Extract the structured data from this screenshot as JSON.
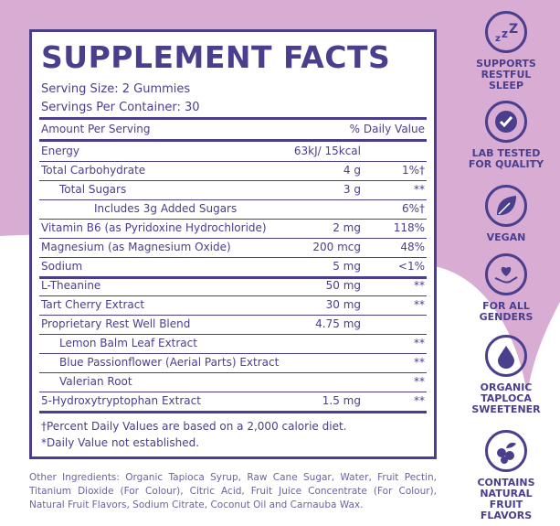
{
  "colors": {
    "brand": "#4a3f8c",
    "background_pink": "#d9acd4",
    "text_muted": "#6a64a0"
  },
  "panel": {
    "title": "SUPPLEMENT FACTS",
    "serving_size": "Serving Size: 2 Gummies",
    "servings_per_container": "Servings Per Container: 30",
    "header_amount": "Amount Per Serving",
    "header_dv": "% Daily Value",
    "rows": [
      {
        "name": "Energy",
        "amount": "63kJ/ 15kcal",
        "dv": ""
      },
      {
        "name": "Total Carbohydrate",
        "amount": "4 g",
        "dv": "1%†"
      },
      {
        "name": "Total Sugars",
        "amount": "3 g",
        "dv": "**"
      },
      {
        "name": "Includes 3g Added Sugars",
        "amount": "",
        "dv": "6%†"
      },
      {
        "name": "Vitamin B6 (as Pyridoxine Hydrochloride)",
        "amount": "2 mg",
        "dv": "118%"
      },
      {
        "name": "Magnesium (as Magnesium Oxide)",
        "amount": "200 mcg",
        "dv": "48%"
      },
      {
        "name": "Sodium",
        "amount": "5 mg",
        "dv": "<1%"
      },
      {
        "name": "L-Theanine",
        "amount": "50 mg",
        "dv": "**"
      },
      {
        "name": "Tart Cherry Extract",
        "amount": "30 mg",
        "dv": "**"
      },
      {
        "name": "Proprietary Rest Well Blend",
        "amount": "4.75 mg",
        "dv": ""
      },
      {
        "name": "Lemon Balm Leaf Extract",
        "amount": "",
        "dv": "**"
      },
      {
        "name": "Blue Passionflower (Aerial Parts) Extract",
        "amount": "",
        "dv": "**"
      },
      {
        "name": "Valerian Root",
        "amount": "",
        "dv": "**"
      },
      {
        "name": "5-Hydroxytryptophan Extract",
        "amount": "1.5 mg",
        "dv": "**"
      }
    ],
    "footnote_1": "†Percent Daily Values are based on a 2,000 calorie diet.",
    "footnote_2": "*Daily Value not established."
  },
  "other_ingredients": "Other Ingredients: Organic Tapioca Syrup, Raw Cane Sugar, Water, Fruit Pectin, Titanium Dioxide (For Colour), Citric Acid, Fruit Juice Concentrate (For Colour), Natural Fruit Flavors, Sodium Citrate, Coconut Oil and Carnauba Wax.",
  "badges": [
    {
      "icon": "zzz-sleep-icon",
      "label": "SUPPORTS RESTFUL SLEEP"
    },
    {
      "icon": "checkmark-icon",
      "label": "LAB TESTED FOR QUALITY"
    },
    {
      "icon": "leaf-icon",
      "label": "VEGAN"
    },
    {
      "icon": "heart-hand-icon",
      "label": "FOR ALL GENDERS"
    },
    {
      "icon": "drop-icon",
      "label": "ORGANIC TAPLOCA SWEETENER"
    },
    {
      "icon": "berries-icon",
      "label": "CONTAINS NATURAL FRUIT FLAVORS"
    }
  ]
}
